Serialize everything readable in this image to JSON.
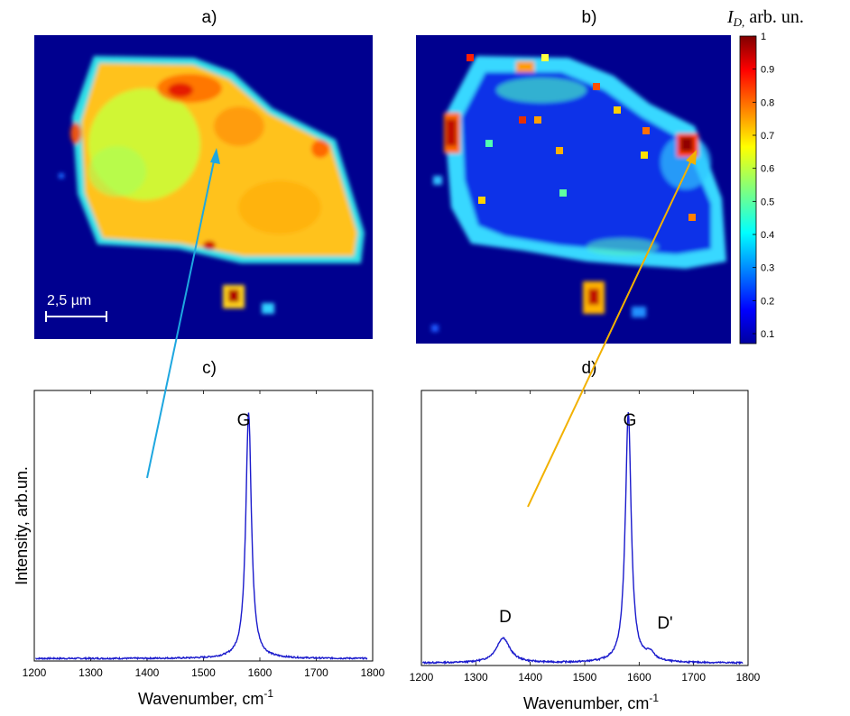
{
  "panels": {
    "a": {
      "label": "a)",
      "scale_bar": "2,5 µm"
    },
    "b": {
      "label": "b)"
    },
    "c": {
      "label": "c)"
    },
    "d": {
      "label": "d)"
    }
  },
  "colorbar": {
    "title_symbol": "I",
    "title_subscript": "D,",
    "title_unit": " arb. un.",
    "range": [
      0.07,
      1.0
    ],
    "ticks": [
      "0.1",
      "0.2",
      "0.3",
      "0.4",
      "0.5",
      "0.6",
      "0.7",
      "0.8",
      "0.9",
      "1"
    ],
    "colormap": "jet"
  },
  "colors": {
    "map_background": "#00008f",
    "spectrum_line": "#1a1acc",
    "arrow_a": "#1ea7e0",
    "arrow_b": "#f2b100"
  },
  "chart_data": [
    {
      "id": "c",
      "type": "line",
      "xlabel": "Wavenumber, cm",
      "xlabel_superscript": "-1",
      "ylabel": "Intensity, arb.un.",
      "xlim": [
        1200,
        1800
      ],
      "ylim": [
        0,
        1.1
      ],
      "xticks": [
        "1200",
        "1300",
        "1400",
        "1500",
        "1600",
        "1700",
        "1800"
      ],
      "peaks": [
        {
          "name": "G",
          "center": 1580,
          "width": 12,
          "height": 1.0
        }
      ],
      "baseline": 0.01,
      "annotations": [
        "G"
      ]
    },
    {
      "id": "d",
      "type": "line",
      "xlabel": "Wavenumber, cm",
      "xlabel_superscript": "-1",
      "ylabel": "",
      "xlim": [
        1200,
        1800
      ],
      "ylim": [
        0,
        1.1
      ],
      "xticks": [
        "1200",
        "1300",
        "1400",
        "1500",
        "1600",
        "1700",
        "1800"
      ],
      "peaks": [
        {
          "name": "D",
          "center": 1350,
          "width": 30,
          "height": 0.1
        },
        {
          "name": "G",
          "center": 1580,
          "width": 13,
          "height": 1.0
        },
        {
          "name": "D'",
          "center": 1620,
          "width": 20,
          "height": 0.03
        }
      ],
      "baseline": 0.01,
      "annotations": [
        "D",
        "G",
        "D'"
      ]
    }
  ]
}
